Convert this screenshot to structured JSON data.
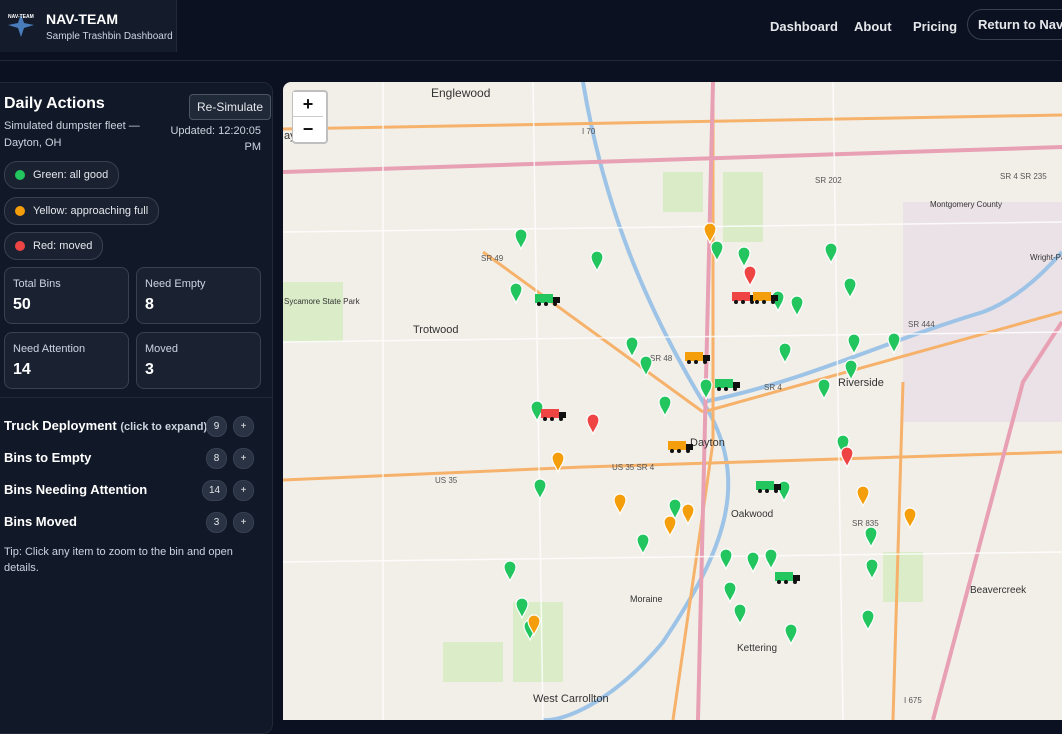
{
  "header": {
    "logo_text": "NAV-TEAM",
    "title": "NAV-TEAM",
    "subtitle": "Sample Trashbin Dashboard",
    "nav": [
      "Dashboard",
      "About",
      "Pricing",
      "Return to Nav-Team"
    ]
  },
  "panel": {
    "title": "Daily Actions",
    "button": "Re-Simulate",
    "description": "Simulated dumpster fleet — Dayton, OH",
    "updated": "Updated: 12:20:05 PM",
    "legend": [
      "Green: all good",
      "Yellow: approaching full",
      "Red: moved"
    ],
    "stats": [
      {
        "label": "Total Bins",
        "value": 50
      },
      {
        "label": "Need Empty",
        "value": 8
      },
      {
        "label": "Need Attention",
        "value": 14
      },
      {
        "label": "Moved",
        "value": 3
      }
    ],
    "sections": [
      {
        "title": "Truck Deployment",
        "hint": "(click to expand)",
        "count": 9,
        "toggle": "+"
      },
      {
        "title": "Bins to Empty",
        "count": 8,
        "toggle": "+"
      },
      {
        "title": "Bins Needing Attention",
        "count": 14,
        "toggle": "+"
      },
      {
        "title": "Bins Moved",
        "count": 3,
        "toggle": "+"
      }
    ],
    "tip": "Tip: Click any item to zoom to the bin and open details."
  },
  "map": {
    "zoom_in": "+",
    "zoom_out": "−",
    "places": [
      "Englewood",
      "ayton",
      "Trotwood",
      "Riverside",
      "Dayton",
      "Oakwood",
      "Moraine",
      "Kettering",
      "West Carrollton",
      "Beavercreek",
      "Sycamore State Park",
      "Wright-Patterson Air Force Base (Field)",
      "Montgomery County"
    ],
    "roads": [
      "I 70",
      "SR 49",
      "SR 202",
      "SR 48",
      "SR 4",
      "SR 444",
      "US 35",
      "US 35 SR 4",
      "SR 835",
      "I 675",
      "SR 4 SR 235"
    ]
  }
}
